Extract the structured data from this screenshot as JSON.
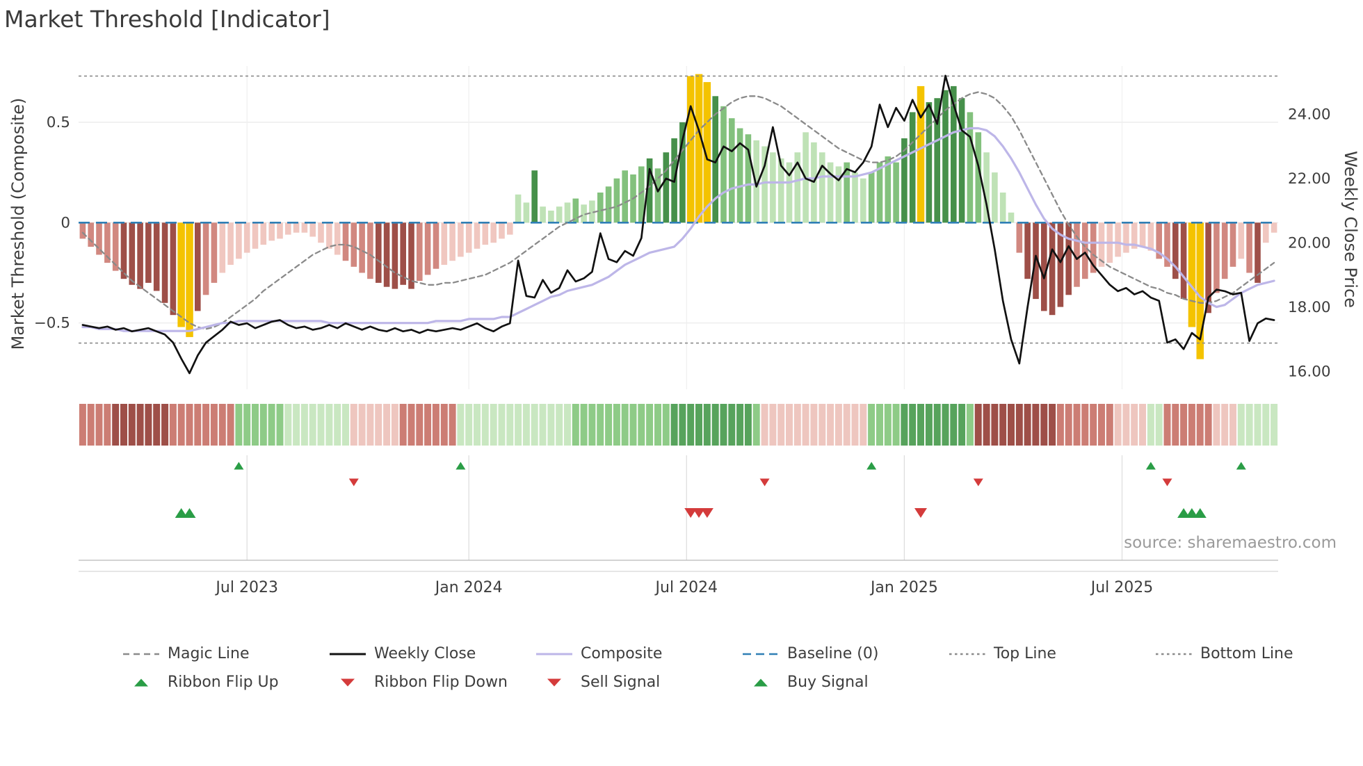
{
  "title": "Market Threshold [Indicator]",
  "source": "source: sharemaestro.com",
  "axes": {
    "left_label": "Market Threshold (Composite)",
    "right_label": "Weekly Close Price",
    "left_ticks": [
      {
        "v": 0.5,
        "label": "0.5"
      },
      {
        "v": 0,
        "label": "0"
      },
      {
        "v": -0.5,
        "label": "−0.5"
      }
    ],
    "right_ticks": [
      {
        "v": 24,
        "label": "24.00"
      },
      {
        "v": 22,
        "label": "22.00"
      },
      {
        "v": 20,
        "label": "20.00"
      },
      {
        "v": 18,
        "label": "18.00"
      },
      {
        "v": 16,
        "label": "16.00"
      }
    ],
    "x_ticks": [
      {
        "week": 20,
        "label": "Jul 2023"
      },
      {
        "week": 47,
        "label": "Jan 2024"
      },
      {
        "week": 73.5,
        "label": "Jul 2024"
      },
      {
        "week": 100,
        "label": "Jan 2025"
      },
      {
        "week": 126.5,
        "label": "Jul 2025"
      }
    ]
  },
  "colors": {
    "text": "#3d3d3d",
    "muted_text": "#9a9a9a",
    "grid": "#e9e9e9",
    "grid_vertical": "#efefef",
    "signal_grid": "#dcdcdc",
    "panel_line_dark": "#b9b9b9",
    "panel_line_light": "#d6d6d6",
    "baseline": "#2f7fb5",
    "magic_line": "#8a8a8a",
    "threshold_line": "#8a8a8a",
    "weekly_close": "#111111",
    "composite_line": "#bdb6e8",
    "signal_green": "#2a9d46",
    "signal_red": "#d43b3b",
    "bar_gold": "#f4c300",
    "bar_neg": {
      "l": "#f0c7c0",
      "m": "#d18880",
      "d": "#9e4f48"
    },
    "bar_pos": {
      "l": "#bfe2b6",
      "m": "#83c17d",
      "d": "#46904a"
    },
    "ribbon": {
      "-3": "#9e4f48",
      "-2": "#cc7d74",
      "-1": "#eec6bf",
      "1": "#c9e7c1",
      "2": "#8ecb87",
      "3": "#57a35c"
    }
  },
  "legend": {
    "row1": [
      {
        "label": "Magic Line",
        "swatch": "dash",
        "color": "#8a8a8a"
      },
      {
        "label": "Weekly Close",
        "swatch": "solid",
        "color": "#111111"
      },
      {
        "label": "Composite",
        "swatch": "solid",
        "color": "#bdb6e8"
      },
      {
        "label": "Baseline (0)",
        "swatch": "longdash",
        "color": "#2f7fb5"
      },
      {
        "label": "Top Line",
        "swatch": "dot",
        "color": "#8a8a8a"
      },
      {
        "label": "Bottom Line",
        "swatch": "dot",
        "color": "#8a8a8a"
      }
    ],
    "row2": [
      {
        "label": "Ribbon Flip Up",
        "swatch": "tri-up",
        "color": "#2a9d46"
      },
      {
        "label": "Ribbon Flip Down",
        "swatch": "tri-down",
        "color": "#d43b3b"
      },
      {
        "label": "Sell Signal",
        "swatch": "tri-down",
        "color": "#d43b3b"
      },
      {
        "label": "Buy Signal",
        "swatch": "tri-up",
        "color": "#2a9d46"
      }
    ]
  },
  "chart_data": {
    "type": "combo",
    "x_unit": "week",
    "n_weeks": 146,
    "left_ylim": [
      -0.83,
      0.78
    ],
    "right_ylim": [
      15.45,
      25.5
    ],
    "baseline": 0,
    "top_line": 0.73,
    "bottom_line": -0.6,
    "bars": [
      [
        -0.08,
        "m"
      ],
      [
        -0.12,
        "m"
      ],
      [
        -0.16,
        "m"
      ],
      [
        -0.2,
        "m"
      ],
      [
        -0.24,
        "m"
      ],
      [
        -0.28,
        "d"
      ],
      [
        -0.31,
        "d"
      ],
      [
        -0.33,
        "d"
      ],
      [
        -0.3,
        "d"
      ],
      [
        -0.34,
        "d"
      ],
      [
        -0.4,
        "d"
      ],
      [
        -0.46,
        "d"
      ],
      [
        -0.52,
        "y"
      ],
      [
        -0.57,
        "y"
      ],
      [
        -0.44,
        "d"
      ],
      [
        -0.36,
        "m"
      ],
      [
        -0.3,
        "m"
      ],
      [
        -0.25,
        "l"
      ],
      [
        -0.21,
        "l"
      ],
      [
        -0.18,
        "l"
      ],
      [
        -0.15,
        "l"
      ],
      [
        -0.13,
        "l"
      ],
      [
        -0.11,
        "l"
      ],
      [
        -0.09,
        "l"
      ],
      [
        -0.08,
        "l"
      ],
      [
        -0.06,
        "l"
      ],
      [
        -0.05,
        "l"
      ],
      [
        -0.05,
        "l"
      ],
      [
        -0.07,
        "l"
      ],
      [
        -0.1,
        "l"
      ],
      [
        -0.13,
        "l"
      ],
      [
        -0.16,
        "l"
      ],
      [
        -0.19,
        "m"
      ],
      [
        -0.22,
        "m"
      ],
      [
        -0.25,
        "m"
      ],
      [
        -0.28,
        "m"
      ],
      [
        -0.3,
        "d"
      ],
      [
        -0.32,
        "d"
      ],
      [
        -0.33,
        "d"
      ],
      [
        -0.31,
        "d"
      ],
      [
        -0.33,
        "d"
      ],
      [
        -0.29,
        "m"
      ],
      [
        -0.26,
        "m"
      ],
      [
        -0.23,
        "m"
      ],
      [
        -0.21,
        "l"
      ],
      [
        -0.19,
        "l"
      ],
      [
        -0.17,
        "l"
      ],
      [
        -0.15,
        "l"
      ],
      [
        -0.13,
        "l"
      ],
      [
        -0.11,
        "l"
      ],
      [
        -0.1,
        "l"
      ],
      [
        -0.08,
        "l"
      ],
      [
        -0.06,
        "l"
      ],
      [
        0.14,
        "l"
      ],
      [
        0.1,
        "l"
      ],
      [
        0.26,
        "d"
      ],
      [
        0.08,
        "l"
      ],
      [
        0.06,
        "l"
      ],
      [
        0.08,
        "l"
      ],
      [
        0.1,
        "l"
      ],
      [
        0.12,
        "m"
      ],
      [
        0.09,
        "l"
      ],
      [
        0.11,
        "l"
      ],
      [
        0.15,
        "m"
      ],
      [
        0.18,
        "m"
      ],
      [
        0.22,
        "m"
      ],
      [
        0.26,
        "m"
      ],
      [
        0.24,
        "m"
      ],
      [
        0.28,
        "m"
      ],
      [
        0.32,
        "d"
      ],
      [
        0.27,
        "m"
      ],
      [
        0.35,
        "d"
      ],
      [
        0.42,
        "d"
      ],
      [
        0.5,
        "d"
      ],
      [
        0.73,
        "y"
      ],
      [
        0.74,
        "y"
      ],
      [
        0.7,
        "y"
      ],
      [
        0.63,
        "d"
      ],
      [
        0.58,
        "m"
      ],
      [
        0.52,
        "m"
      ],
      [
        0.47,
        "m"
      ],
      [
        0.44,
        "m"
      ],
      [
        0.41,
        "l"
      ],
      [
        0.38,
        "l"
      ],
      [
        0.35,
        "l"
      ],
      [
        0.32,
        "l"
      ],
      [
        0.3,
        "l"
      ],
      [
        0.35,
        "l"
      ],
      [
        0.45,
        "l"
      ],
      [
        0.4,
        "l"
      ],
      [
        0.35,
        "l"
      ],
      [
        0.3,
        "l"
      ],
      [
        0.28,
        "l"
      ],
      [
        0.3,
        "m"
      ],
      [
        0.25,
        "l"
      ],
      [
        0.22,
        "l"
      ],
      [
        0.25,
        "m"
      ],
      [
        0.3,
        "m"
      ],
      [
        0.33,
        "m"
      ],
      [
        0.3,
        "m"
      ],
      [
        0.42,
        "d"
      ],
      [
        0.55,
        "d"
      ],
      [
        0.68,
        "y"
      ],
      [
        0.6,
        "d"
      ],
      [
        0.62,
        "d"
      ],
      [
        0.66,
        "d"
      ],
      [
        0.68,
        "d"
      ],
      [
        0.62,
        "d"
      ],
      [
        0.55,
        "m"
      ],
      [
        0.45,
        "m"
      ],
      [
        0.35,
        "l"
      ],
      [
        0.25,
        "l"
      ],
      [
        0.15,
        "l"
      ],
      [
        0.05,
        "l"
      ],
      [
        -0.15,
        "m"
      ],
      [
        -0.28,
        "d"
      ],
      [
        -0.38,
        "d"
      ],
      [
        -0.44,
        "d"
      ],
      [
        -0.46,
        "d"
      ],
      [
        -0.42,
        "d"
      ],
      [
        -0.36,
        "d"
      ],
      [
        -0.32,
        "m"
      ],
      [
        -0.28,
        "m"
      ],
      [
        -0.25,
        "m"
      ],
      [
        -0.22,
        "l"
      ],
      [
        -0.2,
        "l"
      ],
      [
        -0.17,
        "l"
      ],
      [
        -0.15,
        "l"
      ],
      [
        -0.13,
        "l"
      ],
      [
        -0.12,
        "l"
      ],
      [
        -0.14,
        "l"
      ],
      [
        -0.18,
        "m"
      ],
      [
        -0.22,
        "m"
      ],
      [
        -0.28,
        "d"
      ],
      [
        -0.38,
        "d"
      ],
      [
        -0.52,
        "y"
      ],
      [
        -0.68,
        "y"
      ],
      [
        -0.45,
        "d"
      ],
      [
        -0.35,
        "m"
      ],
      [
        -0.28,
        "m"
      ],
      [
        -0.22,
        "m"
      ],
      [
        -0.18,
        "l"
      ],
      [
        -0.25,
        "m"
      ],
      [
        -0.3,
        "d"
      ],
      [
        -0.1,
        "l"
      ],
      [
        -0.05,
        "l"
      ]
    ],
    "weekly_close": [
      17.45,
      17.4,
      17.35,
      17.4,
      17.3,
      17.35,
      17.25,
      17.3,
      17.35,
      17.25,
      17.15,
      16.9,
      16.4,
      15.95,
      16.5,
      16.9,
      17.1,
      17.3,
      17.55,
      17.45,
      17.5,
      17.35,
      17.45,
      17.55,
      17.6,
      17.45,
      17.35,
      17.4,
      17.3,
      17.35,
      17.45,
      17.35,
      17.5,
      17.4,
      17.3,
      17.4,
      17.3,
      17.25,
      17.35,
      17.25,
      17.3,
      17.2,
      17.3,
      17.25,
      17.3,
      17.35,
      17.3,
      17.4,
      17.5,
      17.35,
      17.25,
      17.4,
      17.5,
      19.45,
      18.35,
      18.3,
      18.85,
      18.45,
      18.6,
      19.15,
      18.8,
      18.9,
      19.1,
      20.3,
      19.5,
      19.4,
      19.75,
      19.6,
      20.15,
      22.3,
      21.6,
      22.0,
      21.9,
      23.2,
      24.25,
      23.5,
      22.6,
      22.5,
      23.0,
      22.85,
      23.1,
      22.9,
      21.75,
      22.4,
      23.6,
      22.4,
      22.1,
      22.5,
      22.0,
      21.9,
      22.4,
      22.15,
      21.95,
      22.3,
      22.2,
      22.5,
      23.0,
      24.3,
      23.6,
      24.2,
      23.8,
      24.45,
      23.9,
      24.3,
      23.7,
      25.2,
      24.3,
      23.5,
      23.3,
      22.4,
      21.2,
      19.8,
      18.2,
      17.0,
      16.25,
      18.0,
      19.6,
      18.9,
      19.8,
      19.4,
      19.9,
      19.5,
      19.7,
      19.3,
      19.0,
      18.7,
      18.5,
      18.6,
      18.4,
      18.5,
      18.3,
      18.2,
      16.9,
      17.0,
      16.7,
      17.2,
      17.0,
      18.3,
      18.55,
      18.5,
      18.4,
      18.45,
      16.95,
      17.5,
      17.65,
      17.6
    ],
    "magic_line": [
      -0.05,
      -0.09,
      -0.13,
      -0.17,
      -0.21,
      -0.25,
      -0.29,
      -0.32,
      -0.35,
      -0.38,
      -0.41,
      -0.44,
      -0.47,
      -0.5,
      -0.52,
      -0.53,
      -0.52,
      -0.5,
      -0.47,
      -0.44,
      -0.41,
      -0.38,
      -0.34,
      -0.31,
      -0.28,
      -0.25,
      -0.22,
      -0.19,
      -0.16,
      -0.14,
      -0.12,
      -0.11,
      -0.11,
      -0.12,
      -0.14,
      -0.16,
      -0.19,
      -0.22,
      -0.25,
      -0.27,
      -0.29,
      -0.3,
      -0.31,
      -0.31,
      -0.3,
      -0.3,
      -0.29,
      -0.28,
      -0.27,
      -0.26,
      -0.24,
      -0.22,
      -0.2,
      -0.17,
      -0.14,
      -0.11,
      -0.08,
      -0.05,
      -0.02,
      0.0,
      0.02,
      0.04,
      0.05,
      0.06,
      0.07,
      0.08,
      0.1,
      0.12,
      0.15,
      0.18,
      0.22,
      0.26,
      0.31,
      0.36,
      0.41,
      0.46,
      0.5,
      0.54,
      0.57,
      0.6,
      0.62,
      0.63,
      0.63,
      0.62,
      0.6,
      0.58,
      0.55,
      0.52,
      0.49,
      0.46,
      0.43,
      0.4,
      0.37,
      0.35,
      0.33,
      0.31,
      0.3,
      0.3,
      0.31,
      0.33,
      0.36,
      0.4,
      0.44,
      0.48,
      0.52,
      0.56,
      0.59,
      0.62,
      0.64,
      0.65,
      0.64,
      0.62,
      0.58,
      0.53,
      0.46,
      0.38,
      0.3,
      0.22,
      0.14,
      0.06,
      -0.01,
      -0.07,
      -0.12,
      -0.16,
      -0.19,
      -0.22,
      -0.24,
      -0.26,
      -0.28,
      -0.3,
      -0.32,
      -0.33,
      -0.35,
      -0.36,
      -0.38,
      -0.39,
      -0.4,
      -0.4,
      -0.39,
      -0.37,
      -0.35,
      -0.32,
      -0.29,
      -0.26,
      -0.23,
      -0.2
    ],
    "composite_line": [
      -0.52,
      -0.52,
      -0.53,
      -0.53,
      -0.53,
      -0.54,
      -0.54,
      -0.54,
      -0.54,
      -0.54,
      -0.54,
      -0.54,
      -0.54,
      -0.54,
      -0.53,
      -0.52,
      -0.51,
      -0.5,
      -0.5,
      -0.49,
      -0.49,
      -0.49,
      -0.49,
      -0.49,
      -0.49,
      -0.49,
      -0.49,
      -0.49,
      -0.49,
      -0.49,
      -0.5,
      -0.5,
      -0.5,
      -0.5,
      -0.5,
      -0.5,
      -0.5,
      -0.5,
      -0.5,
      -0.5,
      -0.5,
      -0.5,
      -0.5,
      -0.49,
      -0.49,
      -0.49,
      -0.49,
      -0.48,
      -0.48,
      -0.48,
      -0.48,
      -0.47,
      -0.47,
      -0.45,
      -0.43,
      -0.41,
      -0.39,
      -0.37,
      -0.36,
      -0.34,
      -0.33,
      -0.32,
      -0.31,
      -0.29,
      -0.27,
      -0.24,
      -0.21,
      -0.19,
      -0.17,
      -0.15,
      -0.14,
      -0.13,
      -0.12,
      -0.08,
      -0.03,
      0.03,
      0.08,
      0.12,
      0.15,
      0.17,
      0.18,
      0.19,
      0.19,
      0.2,
      0.2,
      0.2,
      0.2,
      0.21,
      0.22,
      0.22,
      0.23,
      0.23,
      0.23,
      0.23,
      0.23,
      0.24,
      0.25,
      0.27,
      0.29,
      0.31,
      0.33,
      0.35,
      0.37,
      0.39,
      0.41,
      0.43,
      0.45,
      0.46,
      0.47,
      0.47,
      0.46,
      0.43,
      0.38,
      0.32,
      0.25,
      0.17,
      0.09,
      0.02,
      -0.03,
      -0.06,
      -0.08,
      -0.09,
      -0.1,
      -0.1,
      -0.1,
      -0.1,
      -0.1,
      -0.11,
      -0.11,
      -0.12,
      -0.13,
      -0.15,
      -0.18,
      -0.22,
      -0.27,
      -0.32,
      -0.37,
      -0.4,
      -0.42,
      -0.41,
      -0.38,
      -0.35,
      -0.33,
      -0.31,
      -0.3,
      -0.29
    ],
    "ribbon": [
      -2,
      -2,
      -2,
      -2,
      -3,
      -3,
      -3,
      -3,
      -3,
      -3,
      -3,
      -2,
      -2,
      -2,
      -2,
      -2,
      -2,
      -2,
      -2,
      2,
      2,
      2,
      2,
      2,
      2,
      1,
      1,
      1,
      1,
      1,
      1,
      1,
      1,
      -1,
      -1,
      -1,
      -1,
      -1,
      -1,
      -2,
      -2,
      -2,
      -2,
      -2,
      -2,
      -2,
      1,
      1,
      1,
      1,
      1,
      1,
      1,
      1,
      1,
      1,
      1,
      1,
      1,
      1,
      2,
      2,
      2,
      2,
      2,
      2,
      2,
      2,
      2,
      2,
      2,
      2,
      3,
      3,
      3,
      3,
      3,
      3,
      3,
      3,
      3,
      3,
      2,
      -1,
      -1,
      -1,
      -1,
      -1,
      -1,
      -1,
      -1,
      -1,
      -1,
      -1,
      -1,
      -1,
      2,
      2,
      2,
      2,
      3,
      3,
      3,
      3,
      3,
      3,
      3,
      3,
      2,
      -3,
      -3,
      -3,
      -3,
      -3,
      -3,
      -3,
      -3,
      -3,
      -3,
      -2,
      -2,
      -2,
      -2,
      -2,
      -2,
      -2,
      -1,
      -1,
      -1,
      -1,
      1,
      1,
      -2,
      -2,
      -2,
      -2,
      -2,
      -2,
      -1,
      -1,
      -1,
      1,
      1,
      1,
      1,
      1
    ],
    "signals": {
      "ribbon_flip_up": [
        19,
        46,
        96,
        130,
        141
      ],
      "ribbon_flip_down": [
        33,
        83,
        109,
        132
      ],
      "buy": [
        12,
        13,
        134,
        135,
        136
      ],
      "sell": [
        74,
        75,
        76,
        102
      ]
    }
  }
}
